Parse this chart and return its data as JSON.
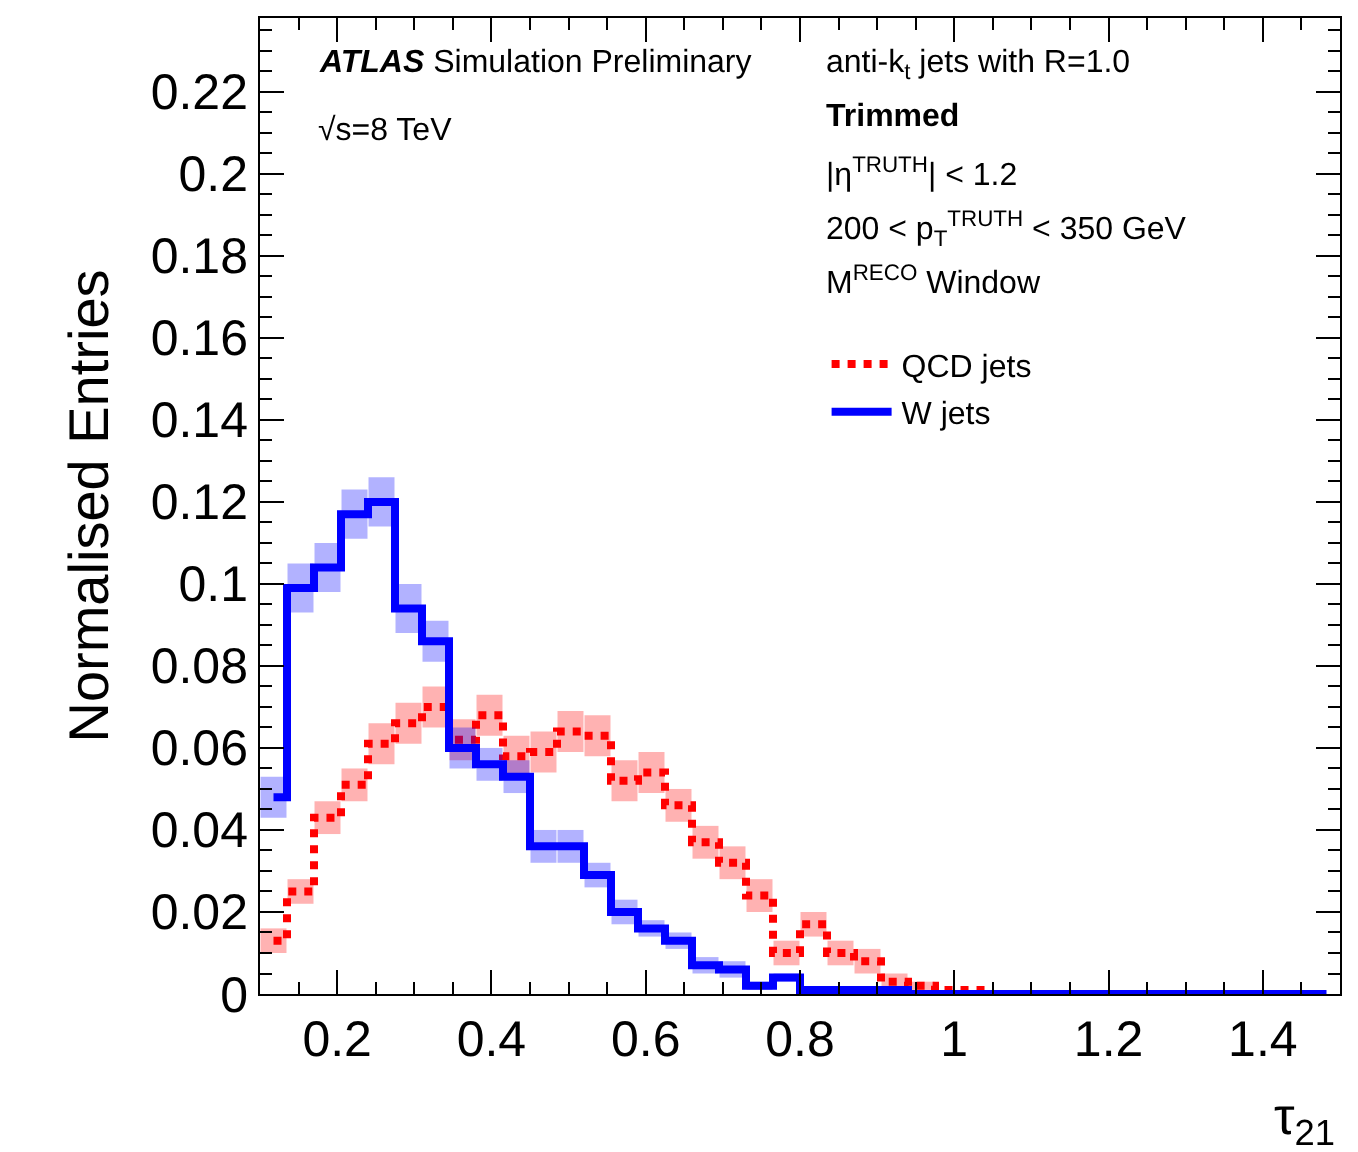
{
  "chart_data": {
    "type": "step",
    "xlabel": "τ$_{21}$",
    "ylabel": "Normalised Entries",
    "annotations": [
      "ATLAS Simulation Preliminary",
      "√s=8 TeV",
      "anti-k$_{t}$ jets with R=1.0",
      "Trimmed",
      "|η$^{TRUTH}$| < 1.2",
      "200 < p$_{T}$$^{TRUTH}$ < 350 GeV",
      "M$^{RECO}$ Window"
    ],
    "x": [
      0.1175,
      0.1525,
      0.1875,
      0.2225,
      0.2575,
      0.2925,
      0.3275,
      0.3625,
      0.3975,
      0.4325,
      0.4675,
      0.5025,
      0.5375,
      0.5725,
      0.6075,
      0.6425,
      0.6775,
      0.7125,
      0.7475,
      0.7825,
      0.8175,
      0.8525,
      0.8875,
      0.9225,
      0.9575,
      0.9925,
      1.0275,
      1.0625,
      1.0975,
      1.1325,
      1.1675,
      1.2025,
      1.2375,
      1.2725,
      1.3075,
      1.3425,
      1.3775,
      1.4125,
      1.4475,
      1.4825
    ],
    "series": [
      {
        "name": "QCD jets",
        "color": "#ff0000",
        "line_style": "dotted",
        "values": [
          0.013,
          0.025,
          0.043,
          0.051,
          0.061,
          0.066,
          0.07,
          0.062,
          0.068,
          0.058,
          0.059,
          0.064,
          0.063,
          0.052,
          0.054,
          0.046,
          0.037,
          0.032,
          0.024,
          0.01,
          0.017,
          0.01,
          0.008,
          0.003,
          0.002,
          0.001,
          0.001,
          0,
          null,
          null,
          null,
          null,
          null,
          null,
          null,
          null,
          null,
          null,
          null,
          null
        ],
        "errors": [
          0.003,
          0.003,
          0.004,
          0.004,
          0.005,
          0.005,
          0.005,
          0.005,
          0.005,
          0.005,
          0.005,
          0.005,
          0.005,
          0.005,
          0.005,
          0.004,
          0.004,
          0.004,
          0.004,
          0.003,
          0.003,
          0.003,
          0.003,
          0.002,
          0.001,
          null,
          null,
          null,
          null,
          null,
          null,
          null,
          null,
          null,
          null,
          null,
          null,
          null,
          null,
          null
        ]
      },
      {
        "name": "W jets",
        "color": "#0000ff",
        "line_style": "solid",
        "values": [
          0.048,
          0.099,
          0.104,
          0.117,
          0.12,
          0.094,
          0.086,
          0.06,
          0.056,
          0.053,
          0.036,
          0.036,
          0.029,
          0.02,
          0.016,
          0.013,
          0.007,
          0.006,
          0.002,
          0.004,
          0.001,
          0.001,
          0.001,
          0.001,
          0,
          0,
          0,
          0,
          0,
          0,
          0,
          0,
          0,
          0,
          0,
          0,
          0,
          0,
          0,
          0
        ],
        "errors": [
          0.005,
          0.006,
          0.006,
          0.006,
          0.006,
          0.006,
          0.005,
          0.005,
          0.004,
          0.004,
          0.004,
          0.004,
          0.003,
          0.003,
          0.002,
          0.002,
          0.002,
          0.002,
          0.001,
          0.001,
          null,
          null,
          null,
          null,
          null,
          null,
          null,
          null,
          null,
          null,
          null,
          null,
          null,
          null,
          null,
          null,
          null,
          null,
          null,
          null
        ]
      }
    ],
    "xlim": [
      0.1,
      1.5
    ],
    "xticks": [
      0.2,
      0.4,
      0.6,
      0.8,
      1,
      1.2,
      1.4
    ],
    "ylim": [
      0,
      0.238
    ],
    "yticks": [
      0,
      0.02,
      0.04,
      0.06,
      0.08,
      0.1,
      0.12,
      0.14,
      0.16,
      0.18,
      0.2,
      0.22
    ],
    "legend": "top right"
  }
}
